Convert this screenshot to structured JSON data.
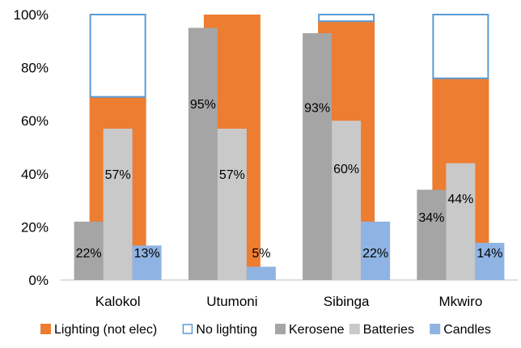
{
  "chart_data": {
    "type": "bar",
    "title": "",
    "xlabel": "",
    "ylabel": "",
    "ylim": [
      0,
      100
    ],
    "y_ticks": [
      "0%",
      "20%",
      "40%",
      "60%",
      "80%",
      "100%"
    ],
    "grid": false,
    "legend_position": "bottom",
    "categories": [
      "Kalokol",
      "Utumoni",
      "Sibinga",
      "Mkwiro"
    ],
    "stacked_background": [
      {
        "name": "Lighting (not elec)",
        "color": "#ED7D31",
        "values": [
          69,
          100,
          97.5,
          76
        ],
        "style": "filled"
      },
      {
        "name": "No lighting",
        "color": "#5B9BD5",
        "values": [
          31,
          0,
          2.5,
          24
        ],
        "style": "outline"
      }
    ],
    "series": [
      {
        "name": "Kerosene",
        "color": "#A5A5A5",
        "values": [
          22,
          95,
          93,
          34
        ],
        "labels": [
          "22%",
          "95%",
          "93%",
          "34%"
        ]
      },
      {
        "name": "Batteries",
        "color": "#C9C9C9",
        "values": [
          57,
          57,
          60,
          44
        ],
        "labels": [
          "57%",
          "57%",
          "60%",
          "44%"
        ]
      },
      {
        "name": "Candles",
        "color": "#8FB4E3",
        "values": [
          13,
          5,
          22,
          14
        ],
        "labels": [
          "13%",
          "5%",
          "22%",
          "14%"
        ]
      }
    ]
  }
}
